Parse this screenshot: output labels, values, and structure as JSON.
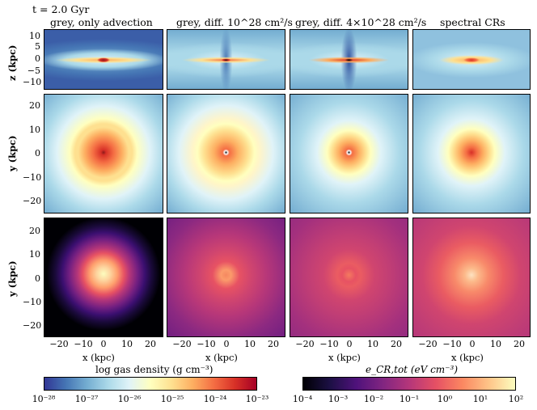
{
  "time_label": "t = 2.0 Gyr",
  "columns": [
    {
      "title": "grey, only advection"
    },
    {
      "title": "grey, diff. 10^28 cm²/s"
    },
    {
      "title": "grey, diff. 4×10^28 cm²/s"
    },
    {
      "title": "spectral CRs"
    }
  ],
  "rows": [
    {
      "quantity": "gas density",
      "view": "edge-on",
      "ylabel": "z (kpc)",
      "yticks": [
        "10",
        "5",
        "0",
        "−5",
        "−10"
      ]
    },
    {
      "quantity": "gas density",
      "view": "face-on",
      "ylabel": "y (kpc)",
      "yticks": [
        "20",
        "10",
        "0",
        "−10",
        "−20"
      ]
    },
    {
      "quantity": "CR energy density",
      "view": "face-on",
      "ylabel": "y (kpc)",
      "yticks": [
        "20",
        "10",
        "0",
        "−10",
        "−20"
      ]
    }
  ],
  "x_axis": {
    "label": "x (kpc)",
    "ticks": [
      "−20",
      "−10",
      "0",
      "10",
      "20"
    ]
  },
  "colorbars": [
    {
      "label": "log gas density (g cm⁻³)",
      "colormap": "RdYlBu_r",
      "ticks": [
        "10⁻²⁸",
        "10⁻²⁷",
        "10⁻²⁶",
        "10⁻²⁵",
        "10⁻²⁴",
        "10⁻²³"
      ]
    },
    {
      "label": "e_CR,tot (eV cm⁻³)",
      "colormap": "magma",
      "ticks": [
        "10⁻⁴",
        "10⁻³",
        "10⁻²",
        "10⁻¹",
        "10⁰",
        "10¹",
        "10²"
      ]
    }
  ]
}
